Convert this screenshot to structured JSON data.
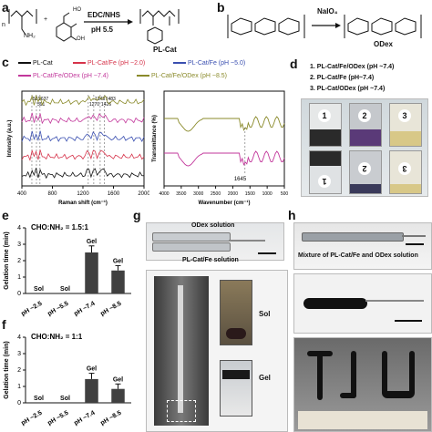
{
  "panels": {
    "a": {
      "label": "a",
      "reagent": "EDC/NHS",
      "condition": "pH 5.5",
      "product": "PL-Cat",
      "nh2": "NH₂",
      "ho": "HO",
      "oh": "OH",
      "n_sub": "n"
    },
    "b": {
      "label": "b",
      "reagent": "NaIO₄",
      "product": "ODex"
    },
    "c": {
      "label": "c"
    },
    "d": {
      "label": "d",
      "items": [
        "1. PL-Cat/Fe/ODex (pH ~7.4)",
        "2. PL-Cat/Fe (pH~7.4)",
        "3. PL-Cat/ODex (pH ~7.4)"
      ],
      "vials": [
        "1",
        "2",
        "3"
      ]
    },
    "e": {
      "label": "e"
    },
    "f": {
      "label": "f"
    },
    "g": {
      "label": "g",
      "odex": "ODex solution",
      "plcat": "PL-Cat/Fe solution",
      "sol": "Sol",
      "gel": "Gel"
    },
    "h": {
      "label": "h",
      "caption": "Mixture of PL-Cat/Fe and ODex solution"
    }
  },
  "legend": [
    "PL-Cat",
    "PL-Cat/Fe (pH ~2.0)",
    "PL-Cat/Fe (pH ~5.0)",
    "PL-Cat/Fe/ODex (pH ~7.4)",
    "PL-Cat/Fe/ODex (pH ~8.5)"
  ],
  "colors": {
    "black": "#111111",
    "red": "#d6334a",
    "blue": "#3a4fb0",
    "magenta": "#c2379b",
    "olive": "#8a8a2a",
    "bar": "#404040"
  },
  "chart_data": [
    {
      "type": "line",
      "xlabel": "Raman shift (cm⁻¹)",
      "ylabel": "Intensity (a.u.)",
      "xlim": [
        400,
        2000
      ],
      "xticks": [
        400,
        800,
        1200,
        1600,
        2000
      ],
      "annotations": [
        "531",
        "591",
        "637",
        "1270",
        "1342",
        "1426",
        "1483"
      ],
      "series": [
        {
          "name": "PL-Cat",
          "offset": 0
        },
        {
          "name": "PL-Cat/Fe (pH ~2.0)",
          "offset": 1
        },
        {
          "name": "PL-Cat/Fe (pH ~5.0)",
          "offset": 2
        },
        {
          "name": "PL-Cat/Fe/ODex (pH ~7.4)",
          "offset": 3
        },
        {
          "name": "PL-Cat/Fe/ODex (pH ~8.5)",
          "offset": 4
        }
      ]
    },
    {
      "type": "line",
      "xlabel": "Wavenumber (cm⁻¹)",
      "ylabel": "Transmittance (%)",
      "xlim": [
        4000,
        500
      ],
      "xticks": [
        4000,
        3500,
        3000,
        2500,
        2000,
        1500,
        1000,
        500
      ],
      "annotations": [
        "1645"
      ],
      "series": [
        {
          "name": "upper (green)"
        },
        {
          "name": "lower (magenta)"
        }
      ]
    },
    {
      "type": "bar",
      "title": "CHO:NH₂ = 1.5:1",
      "ylabel": "Gelation time (min)",
      "categories": [
        "pH ~2.5",
        "pH ~5.5",
        "pH ~7.4",
        "pH ~8.5"
      ],
      "values": [
        0,
        0,
        2.5,
        1.4
      ],
      "errors": [
        0,
        0,
        0.4,
        0.3
      ],
      "labels": [
        "Sol",
        "Sol",
        "Gel",
        "Gel"
      ],
      "yticks": [
        0,
        1,
        2,
        3,
        4
      ],
      "ylim": [
        0,
        4
      ]
    },
    {
      "type": "bar",
      "title": "CHO:NH₂ = 1:1",
      "ylabel": "Gelation time (min)",
      "categories": [
        "pH ~2.5",
        "pH ~5.5",
        "pH ~7.4",
        "pH ~8.5"
      ],
      "values": [
        0,
        0,
        1.45,
        0.85
      ],
      "errors": [
        0,
        0,
        0.35,
        0.3
      ],
      "labels": [
        "Sol",
        "Sol",
        "Gel",
        "Gel"
      ],
      "yticks": [
        0,
        1,
        2,
        3,
        4
      ],
      "ylim": [
        0,
        4
      ]
    }
  ]
}
